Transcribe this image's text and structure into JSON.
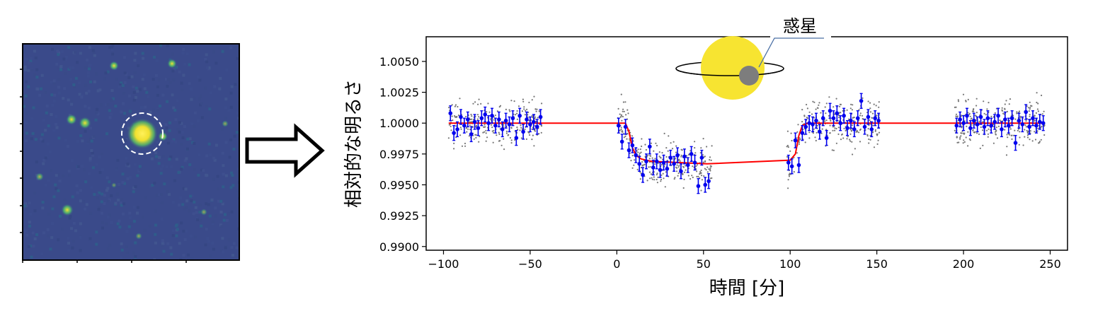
{
  "figure": {
    "arrow_icon": "right-arrow-icon",
    "star_image": {
      "description_icon": "telescope-star-field",
      "colormap": "viridis",
      "target_marker": "dashed-circle"
    },
    "callout_label": "惑星",
    "colors": {
      "model_line": "#ff0000",
      "binned_points": "#0000ee",
      "raw_points": "#777777",
      "star": "#f7e431",
      "planet": "#7d7d7d",
      "sky_background": "#3a4a8a"
    }
  },
  "chart_data": {
    "type": "scatter",
    "xlabel": "時間 [分]",
    "ylabel": "相対的な明るさ",
    "xlim": [
      -110,
      260
    ],
    "ylim": [
      0.9897,
      1.007
    ],
    "xticks": [
      -100,
      -50,
      0,
      50,
      100,
      150,
      200,
      250
    ],
    "xtick_labels": [
      "−100",
      "−50",
      "0",
      "50",
      "100",
      "150",
      "200",
      "250"
    ],
    "yticks": [
      0.99,
      0.9925,
      0.995,
      0.9975,
      1.0,
      1.0025,
      1.005
    ],
    "ytick_labels": [
      "0.9900",
      "0.9925",
      "0.9950",
      "0.9975",
      "1.0000",
      "1.0025",
      "1.0050"
    ],
    "grid": false,
    "series": [
      {
        "role": "model",
        "x": [
          -97,
          5,
          7,
          9,
          11,
          14,
          20,
          52,
          100,
          103,
          105,
          107,
          110,
          245
        ],
        "y": [
          1.0,
          1.0,
          0.9993,
          0.998,
          0.9974,
          0.9971,
          0.9969,
          0.9967,
          0.997,
          0.9975,
          0.999,
          0.9998,
          1.0,
          1.0
        ]
      },
      {
        "role": "binned",
        "points": [
          [
            -96,
            1.0008,
            0.0006
          ],
          [
            -94,
            0.9992,
            0.0006
          ],
          [
            -92,
            0.9995,
            0.0006
          ],
          [
            -90,
            1.0005,
            0.0006
          ],
          [
            -88,
            0.9998,
            0.0006
          ],
          [
            -86,
            1.0003,
            0.0006
          ],
          [
            -84,
            0.9991,
            0.0006
          ],
          [
            -82,
            1.0001,
            0.0006
          ],
          [
            -80,
            0.9996,
            0.0006
          ],
          [
            -78,
            1.0004,
            0.0006
          ],
          [
            -76,
            1.0007,
            0.0006
          ],
          [
            -74,
            1.0,
            0.0006
          ],
          [
            -72,
            1.0006,
            0.0006
          ],
          [
            -70,
            0.9998,
            0.0006
          ],
          [
            -68,
            1.0003,
            0.0006
          ],
          [
            -66,
            0.9995,
            0.0006
          ],
          [
            -64,
            1.0002,
            0.0006
          ],
          [
            -62,
            0.9999,
            0.0006
          ],
          [
            -60,
            1.0004,
            0.0006
          ],
          [
            -58,
            0.9988,
            0.0006
          ],
          [
            -56,
            1.0006,
            0.0006
          ],
          [
            -54,
            0.9993,
            0.0006
          ],
          [
            -52,
            1.0003,
            0.0006
          ],
          [
            -50,
            0.9999,
            0.0006
          ],
          [
            -48,
            1.0001,
            0.0006
          ],
          [
            -46,
            0.9997,
            0.0006
          ],
          [
            -44,
            1.0005,
            0.0006
          ],
          [
            1,
            0.9998,
            0.0006
          ],
          [
            3,
            0.9985,
            0.0006
          ],
          [
            5,
            0.9997,
            0.0006
          ],
          [
            7,
            0.9978,
            0.0006
          ],
          [
            9,
            0.9982,
            0.0006
          ],
          [
            11,
            0.9974,
            0.0006
          ],
          [
            13,
            0.9967,
            0.0006
          ],
          [
            15,
            0.9958,
            0.0006
          ],
          [
            17,
            0.9969,
            0.0006
          ],
          [
            19,
            0.9981,
            0.0006
          ],
          [
            21,
            0.9964,
            0.0006
          ],
          [
            23,
            0.9969,
            0.0006
          ],
          [
            25,
            0.9962,
            0.0006
          ],
          [
            27,
            0.9968,
            0.0006
          ],
          [
            29,
            0.9963,
            0.0006
          ],
          [
            31,
            0.9972,
            0.0006
          ],
          [
            33,
            0.9967,
            0.0006
          ],
          [
            35,
            0.9974,
            0.0006
          ],
          [
            37,
            0.9961,
            0.0006
          ],
          [
            39,
            0.9973,
            0.0006
          ],
          [
            41,
            0.9966,
            0.0006
          ],
          [
            43,
            0.9975,
            0.0006
          ],
          [
            45,
            0.9968,
            0.0006
          ],
          [
            47,
            0.9949,
            0.0006
          ],
          [
            49,
            0.9972,
            0.0006
          ],
          [
            51,
            0.995,
            0.0006
          ],
          [
            53,
            0.9953,
            0.0006
          ],
          [
            99,
            0.9968,
            0.0006
          ],
          [
            101,
            0.9965,
            0.0006
          ],
          [
            103,
            0.9986,
            0.0006
          ],
          [
            105,
            0.9966,
            0.0006
          ],
          [
            107,
            0.9992,
            0.0006
          ],
          [
            109,
            0.9997,
            0.0006
          ],
          [
            111,
            1.0,
            0.0006
          ],
          [
            113,
            0.9999,
            0.0006
          ],
          [
            115,
            1.0002,
            0.0006
          ],
          [
            117,
            0.9993,
            0.0006
          ],
          [
            119,
            1.0004,
            0.0006
          ],
          [
            121,
            0.9988,
            0.0006
          ],
          [
            123,
            1.001,
            0.0006
          ],
          [
            125,
            1.0004,
            0.0006
          ],
          [
            127,
            1.0008,
            0.0006
          ],
          [
            129,
            1.0,
            0.0006
          ],
          [
            131,
            1.0006,
            0.0006
          ],
          [
            133,
            0.9996,
            0.0006
          ],
          [
            135,
            1.0002,
            0.0006
          ],
          [
            137,
            0.9995,
            0.0006
          ],
          [
            139,
            1.0004,
            0.0006
          ],
          [
            141,
            1.0018,
            0.0006
          ],
          [
            143,
            0.9997,
            0.0006
          ],
          [
            145,
            1.0005,
            0.0006
          ],
          [
            147,
            0.9995,
            0.0006
          ],
          [
            149,
            1.0004,
            0.0006
          ],
          [
            151,
            1.0002,
            0.0006
          ],
          [
            196,
            0.9998,
            0.0006
          ],
          [
            198,
            1.0003,
            0.0006
          ],
          [
            200,
            1.0,
            0.0006
          ],
          [
            202,
            1.0006,
            0.0006
          ],
          [
            204,
            0.9996,
            0.0006
          ],
          [
            206,
            1.0002,
            0.0006
          ],
          [
            208,
            0.9999,
            0.0006
          ],
          [
            210,
            1.0005,
            0.0006
          ],
          [
            212,
            0.9997,
            0.0006
          ],
          [
            214,
            1.0004,
            0.0006
          ],
          [
            216,
            0.9998,
            0.0006
          ],
          [
            218,
            1.0001,
            0.0006
          ],
          [
            220,
            1.0006,
            0.0006
          ],
          [
            222,
            0.9995,
            0.0006
          ],
          [
            224,
            1.0003,
            0.0006
          ],
          [
            226,
            0.9998,
            0.0006
          ],
          [
            228,
            1.0004,
            0.0006
          ],
          [
            230,
            0.9984,
            0.0006
          ],
          [
            232,
            1.0002,
            0.0006
          ],
          [
            234,
            0.9999,
            0.0006
          ],
          [
            236,
            1.0009,
            0.0006
          ],
          [
            238,
            0.9997,
            0.0006
          ],
          [
            240,
            1.0004,
            0.0006
          ],
          [
            242,
            0.9998,
            0.0006
          ],
          [
            244,
            1.0001,
            0.0006
          ],
          [
            246,
            1.0,
            0.0006
          ]
        ]
      },
      {
        "role": "raw",
        "segments": [
          {
            "x_range": [
              -97,
              -43
            ],
            "center": 1.0,
            "amplitude": 0.0027,
            "count": 260
          },
          {
            "x_range": [
              0,
              55
            ],
            "center": "model",
            "amplitude": 0.0027,
            "count": 280
          },
          {
            "x_range": [
              98,
              152
            ],
            "center": "model",
            "amplitude": 0.0027,
            "count": 270
          },
          {
            "x_range": [
              195,
              247
            ],
            "center": 1.0,
            "amplitude": 0.0028,
            "count": 270
          }
        ]
      }
    ]
  }
}
